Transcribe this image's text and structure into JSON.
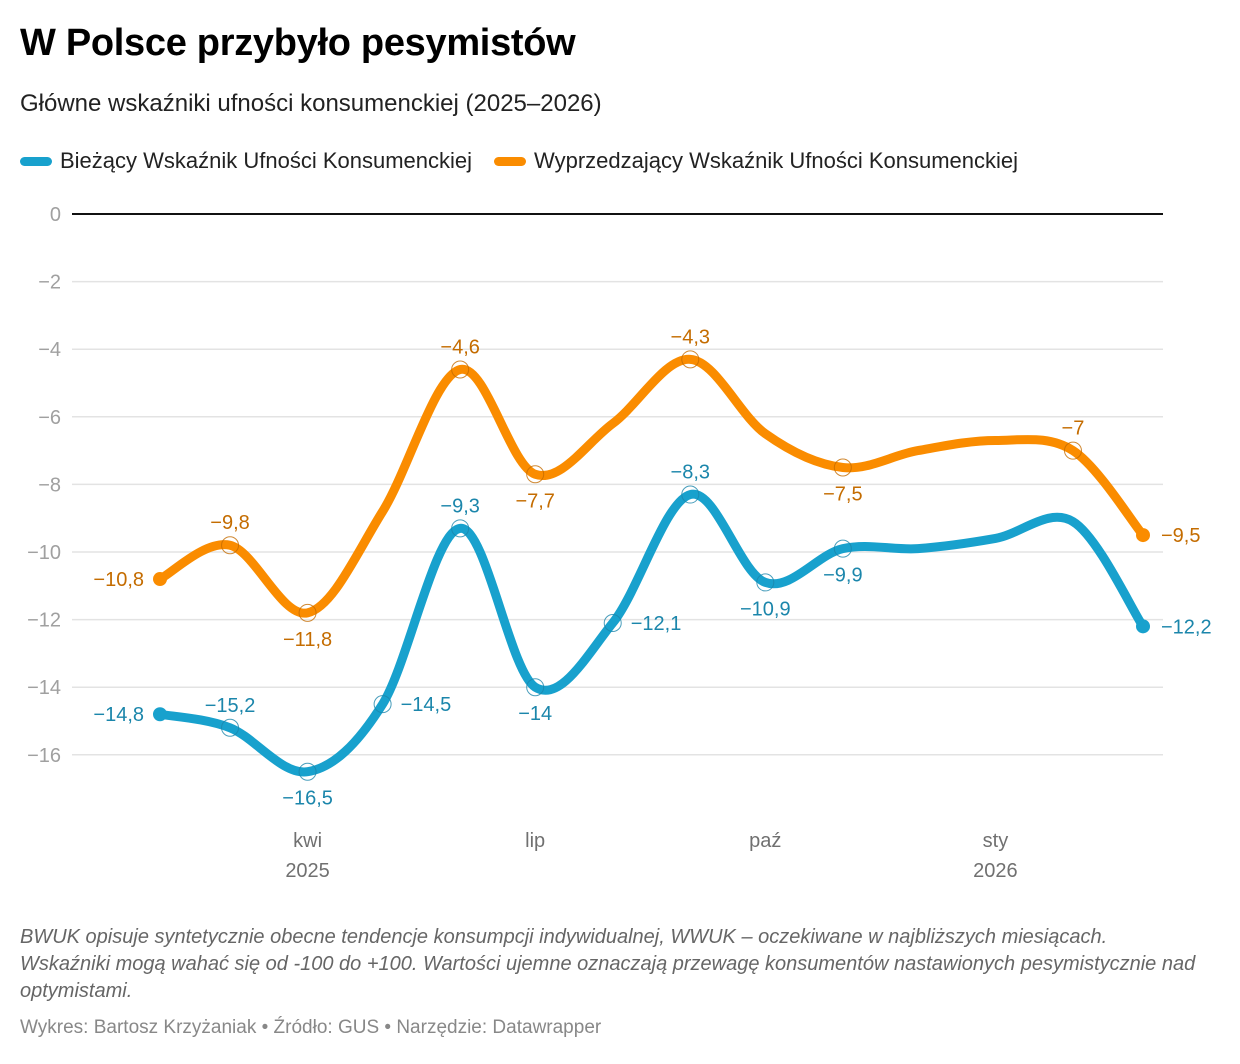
{
  "header": {
    "title": "W Polsce przybyło pesymistów",
    "subtitle": "Główne wskaźniki ufności konsumenckiej (2025–2026)"
  },
  "legend": [
    {
      "label": "Bieżący Wskaźnik Ufności Konsumenckiej",
      "color": "#18a1cd"
    },
    {
      "label": "Wyprzedzający Wskaźnik Ufności Konsumenckiej",
      "color": "#fa8c00"
    }
  ],
  "footer": {
    "notes": "BWUK opisuje syntetycznie obecne tendencje konsumpcji indywidualnej, WWUK – oczekiwane w najbliższych miesiącach. Wskaźniki mogą wahać się od -100 do +100. Wartości ujemne oznaczają przewagę konsumentów nastawionych pesymistycznie nad optymistami.",
    "credits": "Wykres: Bartosz Krzyżaniak • Źródło: GUS • Narzędzie: Datawrapper"
  },
  "chart_data": {
    "type": "line",
    "title": "W Polsce przybyło pesymistów",
    "subtitle": "Główne wskaźniki ufności konsumenckiej (2025–2026)",
    "xlabel": "",
    "ylabel": "",
    "x": [
      "2025-02",
      "2025-03",
      "2025-04",
      "2025-05",
      "2025-06",
      "2025-07",
      "2025-08",
      "2025-09",
      "2025-10",
      "2025-11",
      "2025-12",
      "2026-01",
      "2026-02",
      "2026-03"
    ],
    "x_ticks": [
      {
        "x": "2025-04",
        "label": "kwi",
        "sublabel": "2025"
      },
      {
        "x": "2025-07",
        "label": "lip",
        "sublabel": ""
      },
      {
        "x": "2025-10",
        "label": "paź",
        "sublabel": ""
      },
      {
        "x": "2026-01",
        "label": "sty",
        "sublabel": "2026"
      }
    ],
    "ylim": [
      -17.5,
      0
    ],
    "y_ticks": [
      0,
      -2,
      -4,
      -6,
      -8,
      -10,
      -12,
      -14,
      -16
    ],
    "y_tick_labels": [
      "0",
      "−2",
      "−4",
      "−6",
      "−8",
      "−10",
      "−12",
      "−14",
      "−16"
    ],
    "grid": true,
    "legend_position": "top-left",
    "series": [
      {
        "name": "Bieżący Wskaźnik Ufności Konsumenckiej",
        "color": "#18a1cd",
        "label_color": "#1b86ab",
        "values": [
          -14.8,
          -15.2,
          -16.5,
          -14.5,
          -9.3,
          -14.0,
          -12.1,
          -8.3,
          -10.9,
          -9.9,
          -9.9,
          -9.6,
          -9.1,
          -12.2
        ],
        "labels": [
          "−14,8",
          "−15,2",
          "−16,5",
          "−14,5",
          "−9,3",
          "−14",
          "−12,1",
          "−8,3",
          "−10,9",
          "−9,9",
          "",
          "",
          "",
          "−12,2"
        ],
        "label_pos": [
          "left",
          "above",
          "below",
          "right",
          "above",
          "below",
          "right",
          "above",
          "below",
          "below",
          "",
          "",
          "",
          "right"
        ]
      },
      {
        "name": "Wyprzedzający Wskaźnik Ufności Konsumenckiej",
        "color": "#fa8c00",
        "label_color": "#c46c00",
        "values": [
          -10.8,
          -9.8,
          -11.8,
          -8.8,
          -4.6,
          -7.7,
          -6.2,
          -4.3,
          -6.5,
          -7.5,
          -7.0,
          -6.7,
          -7.0,
          -9.5
        ],
        "labels": [
          "−10,8",
          "−9,8",
          "−11,8",
          "",
          "−4,6",
          "−7,7",
          "",
          "−4,3",
          "",
          "−7,5",
          "",
          "",
          "−7",
          "−9,5"
        ],
        "label_pos": [
          "left",
          "above",
          "below",
          "",
          "above",
          "below",
          "",
          "above",
          "",
          "below",
          "",
          "",
          "above",
          "right"
        ]
      }
    ]
  }
}
